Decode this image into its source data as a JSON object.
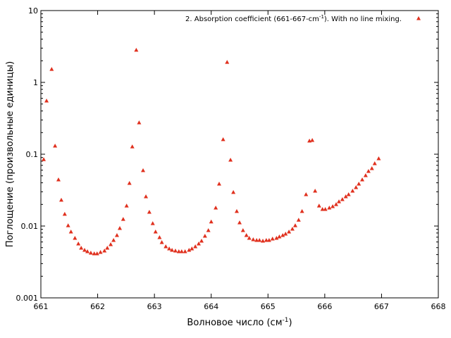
{
  "chart_data": {
    "type": "scatter",
    "xlabel_parts": [
      "Волновое число (см",
      "-1",
      ")"
    ],
    "ylabel": "Поглощение (произвольные единицы)",
    "xlim": [
      661,
      668
    ],
    "xticks": [
      661,
      662,
      663,
      664,
      665,
      666,
      667,
      668
    ],
    "ylim": [
      0.001,
      10
    ],
    "yticks": [
      0.001,
      0.01,
      0.1,
      1,
      10
    ],
    "yscale": "log",
    "series": [
      {
        "name_parts": [
          "2. Absorption coefficient (661-667-cm",
          "-1",
          "). With no line mixing."
        ],
        "color": "#e0301e",
        "marker": "triangle",
        "x": [
          661.05,
          661.1,
          661.19,
          661.25,
          661.31,
          661.36,
          661.42,
          661.48,
          661.53,
          661.6,
          661.66,
          661.71,
          661.77,
          661.82,
          661.88,
          661.94,
          661.99,
          662.05,
          662.12,
          662.17,
          662.23,
          662.28,
          662.34,
          662.39,
          662.45,
          662.51,
          662.56,
          662.61,
          662.68,
          662.73,
          662.8,
          662.85,
          662.91,
          662.97,
          663.02,
          663.09,
          663.13,
          663.2,
          663.26,
          663.31,
          663.37,
          663.43,
          663.48,
          663.54,
          663.61,
          663.66,
          663.72,
          663.78,
          663.83,
          663.89,
          663.95,
          664.0,
          664.08,
          664.14,
          664.21,
          664.28,
          664.34,
          664.39,
          664.45,
          664.5,
          664.56,
          664.62,
          664.67,
          664.74,
          664.8,
          664.85,
          664.91,
          664.97,
          665.02,
          665.08,
          665.15,
          665.2,
          665.26,
          665.31,
          665.37,
          665.43,
          665.48,
          665.54,
          665.6,
          665.67,
          665.73,
          665.78,
          665.83,
          665.9,
          665.96,
          666.01,
          666.08,
          666.14,
          666.2,
          666.25,
          666.31,
          666.37,
          666.42,
          666.49,
          666.55,
          666.6,
          666.66,
          666.72,
          666.77,
          666.83,
          666.88,
          666.95
        ],
        "values": [
          0.085,
          0.556,
          1.53,
          0.131,
          0.0444,
          0.0231,
          0.0147,
          0.0102,
          0.00835,
          0.00681,
          0.00569,
          0.00497,
          0.00464,
          0.00444,
          0.00424,
          0.00415,
          0.00415,
          0.00434,
          0.00454,
          0.00497,
          0.00556,
          0.00637,
          0.00746,
          0.00935,
          0.0125,
          0.0192,
          0.0396,
          0.128,
          2.83,
          0.276,
          0.0596,
          0.0258,
          0.0157,
          0.0109,
          0.00835,
          0.00697,
          0.00595,
          0.0052,
          0.00486,
          0.00464,
          0.00454,
          0.00444,
          0.00444,
          0.00444,
          0.00464,
          0.00486,
          0.0052,
          0.00569,
          0.00623,
          0.00729,
          0.00873,
          0.0115,
          0.018,
          0.0387,
          0.161,
          1.92,
          0.0835,
          0.0296,
          0.0161,
          0.0112,
          0.00873,
          0.00746,
          0.00681,
          0.00651,
          0.00637,
          0.00637,
          0.00623,
          0.00637,
          0.00637,
          0.00667,
          0.00681,
          0.00713,
          0.00746,
          0.0078,
          0.00835,
          0.00914,
          0.0102,
          0.0122,
          0.0161,
          0.0276,
          0.154,
          0.157,
          0.0309,
          0.0192,
          0.0172,
          0.0172,
          0.018,
          0.0188,
          0.0201,
          0.022,
          0.0236,
          0.0258,
          0.0276,
          0.0309,
          0.0346,
          0.0387,
          0.0444,
          0.0508,
          0.0582,
          0.0637,
          0.0746,
          0.0873
        ]
      }
    ]
  }
}
